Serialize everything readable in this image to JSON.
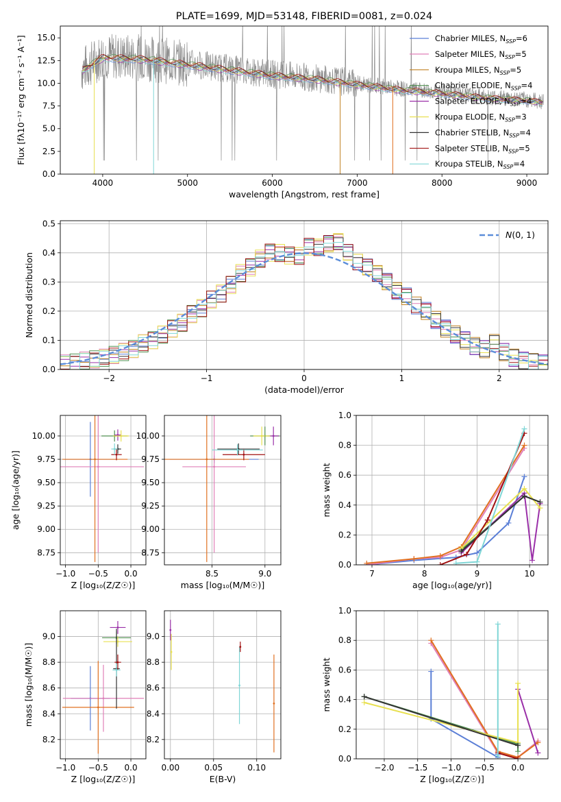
{
  "chart_data": [
    {
      "type": "line",
      "title": "PLATE=1699, MJD=53148, FIBERID=0081, z=0.024",
      "xlabel": "wavelength [Angstrom, rest frame]",
      "ylabel": "Flux [fλ10⁻¹⁷ erg cm⁻² s⁻¹ A⁻¹]",
      "xlim": [
        3500,
        9250
      ],
      "ylim": [
        0,
        16.3
      ],
      "xticks": [
        "4000",
        "5000",
        "6000",
        "7000",
        "8000",
        "9000"
      ],
      "yticks": [
        "0.0",
        "2.5",
        "5.0",
        "7.5",
        "10.0",
        "12.5",
        "15.0"
      ],
      "legend_position": "top-right",
      "observed_continuum": {
        "wavelength": [
          3750,
          4000,
          4500,
          5000,
          5500,
          6000,
          6500,
          7000,
          7500,
          8000,
          8500,
          9000,
          9200
        ],
        "flux": [
          11.5,
          13.0,
          12.8,
          12.2,
          11.6,
          11.0,
          10.6,
          10.0,
          9.4,
          9.0,
          8.5,
          8.2,
          8.0
        ]
      },
      "legend": [
        {
          "label": "Chabrier MILES, N_SSP=6",
          "name": "Chabrier MILES, N",
          "sub": "SSP",
          "rest": "=6",
          "color": "#5b7fd6"
        },
        {
          "label": "Salpeter MILES, N_SSP=5",
          "name": "Salpeter MILES, N",
          "sub": "SSP",
          "rest": "=5",
          "color": "#e07fb8"
        },
        {
          "label": "Kroupa MILES, N_SSP=5",
          "name": "Kroupa MILES, N",
          "sub": "SSP",
          "rest": "=5",
          "color": "#c08020"
        },
        {
          "label": "Chabrier ELODIE, N_SSP=4",
          "name": "Chabrier ELODIE, N",
          "sub": "SSP",
          "rest": "=4",
          "color": "#4f8f4f"
        },
        {
          "label": "Salpeter ELODIE, N_SSP=4",
          "name": "Salpeter ELODIE, N",
          "sub": "SSP",
          "rest": "=4",
          "color": "#9a2fa8"
        },
        {
          "label": "Kroupa ELODIE, N_SSP=3",
          "name": "Kroupa ELODIE, N",
          "sub": "SSP",
          "rest": "=3",
          "color": "#e8e050"
        },
        {
          "label": "Chabrier STELIB, N_SSP=4",
          "name": "Chabrier STELIB, N",
          "sub": "SSP",
          "rest": "=4",
          "color": "#333333"
        },
        {
          "label": "Salpeter STELIB, N_SSP=5",
          "name": "Salpeter STELIB, N",
          "sub": "SSP",
          "rest": "=5",
          "color": "#a01010"
        },
        {
          "label": "Kroupa STELIB, N_SSP=4",
          "name": "Kroupa STELIB, N",
          "sub": "SSP",
          "rest": "=4",
          "color": "#7fd6d6"
        }
      ]
    },
    {
      "type": "histogram",
      "xlabel": "(data-model)/error",
      "ylabel": "Normed distribution",
      "xlim": [
        -2.5,
        2.5
      ],
      "ylim": [
        0,
        0.51
      ],
      "xticks": [
        "−2",
        "−1",
        "0",
        "1",
        "2"
      ],
      "yticks": [
        "0.0",
        "0.1",
        "0.2",
        "0.3",
        "0.4",
        "0.5"
      ],
      "bin_edges": [
        -2.5,
        -2.4,
        -2.3,
        -2.2,
        -2.1,
        -2.0,
        -1.9,
        -1.8,
        -1.7,
        -1.6,
        -1.5,
        -1.4,
        -1.3,
        -1.2,
        -1.1,
        -1.0,
        -0.9,
        -0.8,
        -0.7,
        -0.6,
        -0.5,
        -0.4,
        -0.3,
        -0.2,
        -0.1,
        0.0,
        0.1,
        0.2,
        0.3,
        0.4,
        0.5,
        0.6,
        0.7,
        0.8,
        0.9,
        1.0,
        1.1,
        1.2,
        1.3,
        1.4,
        1.5,
        1.6,
        1.7,
        1.8,
        1.9,
        2.0,
        2.1,
        2.2,
        2.3,
        2.4,
        2.5
      ],
      "mean_counts": [
        0.02,
        0.025,
        0.03,
        0.035,
        0.04,
        0.05,
        0.06,
        0.07,
        0.09,
        0.1,
        0.12,
        0.14,
        0.16,
        0.19,
        0.21,
        0.24,
        0.26,
        0.29,
        0.33,
        0.35,
        0.38,
        0.4,
        0.4,
        0.39,
        0.39,
        0.42,
        0.42,
        0.43,
        0.44,
        0.4,
        0.37,
        0.35,
        0.33,
        0.3,
        0.27,
        0.25,
        0.22,
        0.2,
        0.17,
        0.14,
        0.12,
        0.1,
        0.08,
        0.07,
        0.09,
        0.06,
        0.04,
        0.03,
        0.025,
        0.02
      ],
      "reference_curve": {
        "label": "N(0,1)",
        "type": "gaussian",
        "mean": 0,
        "sigma": 1,
        "color": "#5b8dd9"
      },
      "legend_position": "top-right"
    },
    {
      "type": "errorbar",
      "xlabel": "Z [log₁₀(Z/Z☉)]",
      "ylabel": "age  [log₁₀(age/yr)]",
      "xlim": [
        -1.08,
        0.23
      ],
      "ylim": [
        8.62,
        10.22
      ],
      "xticks": [
        "−1.0",
        "−0.5",
        "0.0"
      ],
      "yticks": [
        "8.75",
        "9.00",
        "9.25",
        "9.50",
        "9.75",
        "10.00"
      ],
      "points": [
        {
          "x": -0.62,
          "y": 9.75,
          "xerr": 0.4,
          "yerr": 0.4,
          "color": "#5b7fd6"
        },
        {
          "x": -0.5,
          "y": 9.67,
          "xerr": 0.7,
          "yerr": 0.92,
          "color": "#e07fb8"
        },
        {
          "x": -0.55,
          "y": 9.75,
          "xerr": 0.5,
          "yerr": 1.1,
          "color": "#e07020"
        },
        {
          "x": -0.25,
          "y": 10.0,
          "xerr": 0.2,
          "yerr": 0.06,
          "color": "#4f8f4f"
        },
        {
          "x": -0.2,
          "y": 10.01,
          "xerr": 0.05,
          "yerr": 0.06,
          "color": "#9a2fa8"
        },
        {
          "x": -0.15,
          "y": 10.0,
          "xerr": 0.12,
          "yerr": 0.06,
          "color": "#e8e050"
        },
        {
          "x": -0.2,
          "y": 9.86,
          "xerr": 0.05,
          "yerr": 0.05,
          "color": "#333333"
        },
        {
          "x": -0.22,
          "y": 9.8,
          "xerr": 0.08,
          "yerr": 0.06,
          "color": "#a01010"
        },
        {
          "x": -0.25,
          "y": 9.86,
          "xerr": 0.05,
          "yerr": 0.06,
          "color": "#7fd6d6"
        }
      ]
    },
    {
      "type": "errorbar",
      "xlabel": "mass [log₁₀(M/M☉)]",
      "ylabel": "",
      "xlim": [
        8.05,
        9.15
      ],
      "ylim": [
        8.62,
        10.22
      ],
      "xticks": [
        "8.5",
        "9.0"
      ],
      "yticks": [
        "8.75",
        "9.00",
        "9.25",
        "9.50",
        "9.75",
        "10.00"
      ],
      "points": [
        {
          "x": 8.52,
          "y": 9.75,
          "xerr": 0.42,
          "yerr": 0.04,
          "color": "#5b7fd6"
        },
        {
          "x": 8.52,
          "y": 9.67,
          "xerr": 0.3,
          "yerr": 0.92,
          "color": "#e07fb8"
        },
        {
          "x": 8.45,
          "y": 9.75,
          "xerr": 0.4,
          "yerr": 1.1,
          "color": "#e07020"
        },
        {
          "x": 9.0,
          "y": 10.0,
          "xerr": 0.14,
          "yerr": 0.1,
          "color": "#4f8f4f"
        },
        {
          "x": 9.08,
          "y": 10.0,
          "xerr": 0.05,
          "yerr": 0.1,
          "color": "#9a2fa8"
        },
        {
          "x": 8.97,
          "y": 10.0,
          "xerr": 0.08,
          "yerr": 0.1,
          "color": "#e8e050"
        },
        {
          "x": 8.75,
          "y": 9.86,
          "xerr": 0.2,
          "yerr": 0.06,
          "color": "#333333"
        },
        {
          "x": 8.8,
          "y": 9.8,
          "xerr": 0.2,
          "yerr": 0.06,
          "color": "#a01010"
        },
        {
          "x": 8.74,
          "y": 9.85,
          "xerr": 0.24,
          "yerr": 0.06,
          "color": "#7fd6d6"
        }
      ]
    },
    {
      "type": "line",
      "xlabel": "age  [log₁₀(age/yr)]",
      "ylabel": "mass weight",
      "xlim": [
        6.7,
        10.35
      ],
      "ylim": [
        0,
        1.0
      ],
      "xticks": [
        "7",
        "8",
        "9",
        "10"
      ],
      "yticks": [
        "0.0",
        "0.2",
        "0.4",
        "0.6",
        "0.8",
        "1.0"
      ],
      "series": [
        {
          "color": "#5b7fd6",
          "x": [
            6.9,
            7.8,
            8.6,
            9.0,
            9.6,
            9.9
          ],
          "y": [
            0.0,
            0.03,
            0.05,
            0.08,
            0.28,
            0.59
          ]
        },
        {
          "color": "#e07fb8",
          "x": [
            6.9,
            7.8,
            8.3,
            8.7,
            9.9
          ],
          "y": [
            0.0,
            0.04,
            0.05,
            0.1,
            0.78
          ]
        },
        {
          "color": "#e07020",
          "x": [
            6.9,
            7.8,
            8.3,
            8.7,
            9.9
          ],
          "y": [
            0.01,
            0.04,
            0.06,
            0.12,
            0.8
          ]
        },
        {
          "color": "#4f8f4f",
          "x": [
            8.7,
            9.9,
            10.2
          ],
          "y": [
            0.1,
            0.46,
            0.42
          ]
        },
        {
          "color": "#9a2fa8",
          "x": [
            8.7,
            9.9,
            10.05,
            10.2
          ],
          "y": [
            0.08,
            0.48,
            0.03,
            0.41
          ]
        },
        {
          "color": "#e8e050",
          "x": [
            8.7,
            9.9,
            10.2
          ],
          "y": [
            0.11,
            0.51,
            0.38
          ]
        },
        {
          "color": "#333333",
          "x": [
            8.7,
            9.9,
            10.2
          ],
          "y": [
            0.09,
            0.46,
            0.42
          ]
        },
        {
          "color": "#a01010",
          "x": [
            8.3,
            8.8,
            9.2,
            9.9
          ],
          "y": [
            0.0,
            0.07,
            0.3,
            0.88
          ]
        },
        {
          "color": "#7fd6d6",
          "x": [
            8.6,
            9.0,
            9.9
          ],
          "y": [
            0.01,
            0.02,
            0.91
          ]
        }
      ]
    },
    {
      "type": "errorbar",
      "xlabel": "Z [log₁₀(Z/Z☉)]",
      "ylabel": "mass [log₁₀(M/M☉)]",
      "xlim": [
        -1.08,
        0.23
      ],
      "ylim": [
        8.05,
        9.2
      ],
      "xticks": [
        "−1.0",
        "−0.5",
        "0.0"
      ],
      "yticks": [
        "8.2",
        "8.4",
        "8.6",
        "8.8",
        "9.0"
      ],
      "points": [
        {
          "x": -0.62,
          "y": 8.52,
          "xerr": 0.3,
          "yerr": 0.25,
          "color": "#5b7fd6"
        },
        {
          "x": -0.42,
          "y": 8.52,
          "xerr": 0.62,
          "yerr": 0.26,
          "color": "#e07fb8"
        },
        {
          "x": -0.5,
          "y": 8.45,
          "xerr": 0.55,
          "yerr": 0.36,
          "color": "#e07020"
        },
        {
          "x": -0.22,
          "y": 8.99,
          "xerr": 0.22,
          "yerr": 0.05,
          "color": "#4f8f4f"
        },
        {
          "x": -0.2,
          "y": 9.07,
          "xerr": 0.12,
          "yerr": 0.05,
          "color": "#9a2fa8"
        },
        {
          "x": -0.2,
          "y": 8.96,
          "xerr": 0.22,
          "yerr": 0.04,
          "color": "#e8e050"
        },
        {
          "x": -0.22,
          "y": 8.75,
          "xerr": 0.05,
          "yerr": 0.31,
          "color": "#333333"
        },
        {
          "x": -0.2,
          "y": 8.8,
          "xerr": 0.05,
          "yerr": 0.06,
          "color": "#a01010"
        },
        {
          "x": -0.22,
          "y": 8.74,
          "xerr": 0.06,
          "yerr": 0.05,
          "color": "#7fd6d6"
        }
      ]
    },
    {
      "type": "errorbar",
      "xlabel": "E(B-V)",
      "ylabel": "",
      "xlim": [
        -0.007,
        0.128
      ],
      "ylim": [
        8.05,
        9.2
      ],
      "xticks": [
        "0.00",
        "0.05",
        "0.10"
      ],
      "yticks": [
        "8.2",
        "8.4",
        "8.6",
        "8.8",
        "9.0"
      ],
      "points": [
        {
          "x": 0.0,
          "y": 9.05,
          "xerr": 0,
          "yerr": 0.08,
          "color": "#9a2fa8"
        },
        {
          "x": 0.001,
          "y": 8.88,
          "xerr": 0,
          "yerr": 0.14,
          "color": "#e8e050"
        },
        {
          "x": 0.08,
          "y": 8.62,
          "xerr": 0,
          "yerr": 0.3,
          "color": "#7fd6d6"
        },
        {
          "x": 0.081,
          "y": 8.92,
          "xerr": 0,
          "yerr": 0.04,
          "color": "#a01010"
        },
        {
          "x": 0.12,
          "y": 8.48,
          "xerr": 0,
          "yerr": 0.38,
          "color": "#e07020"
        }
      ]
    },
    {
      "type": "line",
      "xlabel": "Z [log₁₀(Z/Z☉)]",
      "ylabel": "mass weight",
      "xlim": [
        -2.42,
        0.45
      ],
      "ylim": [
        0,
        1.0
      ],
      "xticks": [
        "−2.0",
        "−1.5",
        "−1.0",
        "−0.5",
        "0.0"
      ],
      "yticks": [
        "0.0",
        "0.2",
        "0.4",
        "0.6",
        "0.8",
        "1.0"
      ],
      "series": [
        {
          "color": "#5b7fd6",
          "x": [
            -1.3,
            -1.3,
            -0.3,
            -0.3
          ],
          "y": [
            0.59,
            0.27,
            0.01,
            0.03
          ]
        },
        {
          "color": "#e07fb8",
          "x": [
            -1.3,
            -0.3,
            0.0,
            0.3
          ],
          "y": [
            0.78,
            0.04,
            0.01,
            0.12
          ]
        },
        {
          "color": "#e07020",
          "x": [
            -1.3,
            -0.3,
            0.0,
            0.3
          ],
          "y": [
            0.8,
            0.05,
            0.01,
            0.11
          ]
        },
        {
          "color": "#4f8f4f",
          "x": [
            -2.3,
            0.0,
            0.0
          ],
          "y": [
            0.42,
            0.1,
            0.05
          ]
        },
        {
          "color": "#9a2fa8",
          "x": [
            0.0,
            0.3
          ],
          "y": [
            0.47,
            0.04
          ]
        },
        {
          "color": "#e8e050",
          "x": [
            -2.3,
            0.0,
            0.0
          ],
          "y": [
            0.38,
            0.11,
            0.51
          ]
        },
        {
          "color": "#333333",
          "x": [
            -2.3,
            0.0
          ],
          "y": [
            0.42,
            0.09
          ]
        },
        {
          "color": "#a01010",
          "x": [
            -0.3,
            0.0
          ],
          "y": [
            0.04,
            0.0
          ]
        },
        {
          "color": "#7fd6d6",
          "x": [
            -0.3,
            -0.3
          ],
          "y": [
            0.91,
            0.02
          ]
        }
      ]
    }
  ]
}
